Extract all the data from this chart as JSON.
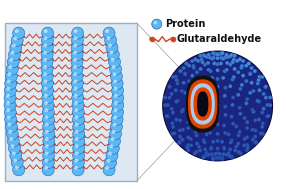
{
  "bg_color": "#ffffff",
  "box_bg": "#dde8f2",
  "box_edge": "#9ab0c8",
  "protein_color": "#5bb8f5",
  "protein_edge": "#2565b0",
  "protein_highlight": "#ffffff",
  "linker_color": "#cc4422",
  "sphere_dark": "#1a2580",
  "sphere_mid": "#2a45cc",
  "sphere_light": "#4da6e8",
  "cutaway_dark": "#0a0818",
  "arc_orange": "#dd4400",
  "arc_blue": "#4da6e8",
  "arc_black": "#111111",
  "legend_text_color": "#111111",
  "legend_protein_label": "Protein",
  "legend_linker_label": "Glutaraldehyde",
  "zoom_line_color": "#aaaaaa"
}
